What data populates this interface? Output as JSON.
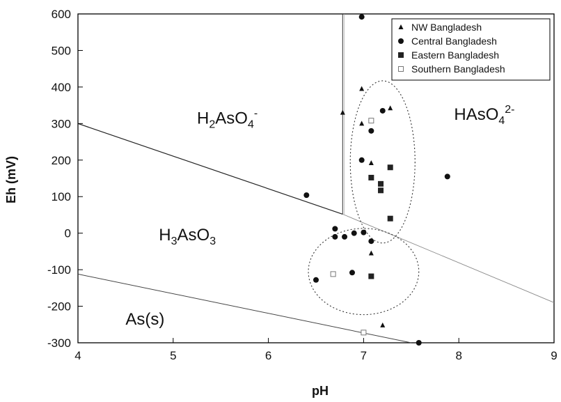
{
  "chart_data": {
    "type": "scatter",
    "xlabel": "pH",
    "ylabel": "Eh (mV)",
    "xlim": [
      4,
      9
    ],
    "ylim": [
      -300,
      600
    ],
    "x_ticks": [
      "4",
      "5",
      "6",
      "7",
      "8",
      "9"
    ],
    "y_ticks": [
      "600",
      "500",
      "400",
      "300",
      "200",
      "100",
      "0",
      "-100",
      "-200",
      "-300"
    ],
    "grid": false,
    "legend_placement": "top-right",
    "series": [
      {
        "name": "NW Bangladesh",
        "marker": "triangle",
        "points": [
          [
            6.78,
            330
          ],
          [
            6.98,
            395
          ],
          [
            6.98,
            300
          ],
          [
            7.08,
            192
          ],
          [
            7.28,
            342
          ],
          [
            7.08,
            -55
          ],
          [
            7.2,
            -252
          ]
        ]
      },
      {
        "name": "Central Bangladesh",
        "marker": "circle",
        "points": [
          [
            6.98,
            592
          ],
          [
            6.4,
            104
          ],
          [
            6.98,
            200
          ],
          [
            7.08,
            280
          ],
          [
            7.2,
            335
          ],
          [
            7.88,
            155
          ],
          [
            6.7,
            12
          ],
          [
            6.7,
            -10
          ],
          [
            6.8,
            -10
          ],
          [
            6.9,
            0
          ],
          [
            7.0,
            2
          ],
          [
            7.08,
            -22
          ],
          [
            6.5,
            -128
          ],
          [
            6.88,
            -108
          ],
          [
            7.58,
            -300
          ]
        ]
      },
      {
        "name": "Eastern Bangladesh",
        "marker": "filled-square",
        "points": [
          [
            7.08,
            152
          ],
          [
            7.18,
            135
          ],
          [
            7.18,
            117
          ],
          [
            7.28,
            180
          ],
          [
            7.28,
            40
          ],
          [
            7.08,
            -118
          ]
        ]
      },
      {
        "name": "Southern Bangladesh",
        "marker": "open-square",
        "points": [
          [
            7.08,
            308
          ],
          [
            6.68,
            -112
          ],
          [
            7.0,
            -272
          ]
        ]
      }
    ],
    "boundaries": [
      [
        [
          4,
          300
        ],
        [
          6.78,
          52
        ]
      ],
      [
        [
          6.78,
          52
        ],
        [
          6.78,
          600
        ]
      ],
      [
        [
          6.78,
          52
        ],
        [
          9,
          -190
        ]
      ],
      [
        [
          4,
          -112
        ],
        [
          7.5,
          -300
        ]
      ]
    ],
    "regions": [
      {
        "label": "H2AsO4-",
        "base": "H",
        "sub1": "2",
        "mid": "AsO",
        "sub2": "4",
        "sup": "-",
        "x": 5.25,
        "y": 300
      },
      {
        "label": "HAsO4 2-",
        "base": "HAsO",
        "sub1": "",
        "mid": "",
        "sub2": "4",
        "sup": "2-",
        "x": 7.95,
        "y": 310
      },
      {
        "label": "H3AsO3",
        "base": "H",
        "sub1": "3",
        "mid": "AsO",
        "sub2": "3",
        "sup": "",
        "x": 4.85,
        "y": -20
      },
      {
        "label": "As(s)",
        "base": "As(s)",
        "sub1": "",
        "mid": "",
        "sub2": "",
        "sup": "",
        "x": 4.5,
        "y": -250
      }
    ],
    "ellipses": [
      {
        "cx": 7.2,
        "cy": 195,
        "rx": 0.34,
        "ry": 222
      },
      {
        "cx": 7.0,
        "cy": -105,
        "rx": 0.58,
        "ry": 118
      }
    ]
  }
}
